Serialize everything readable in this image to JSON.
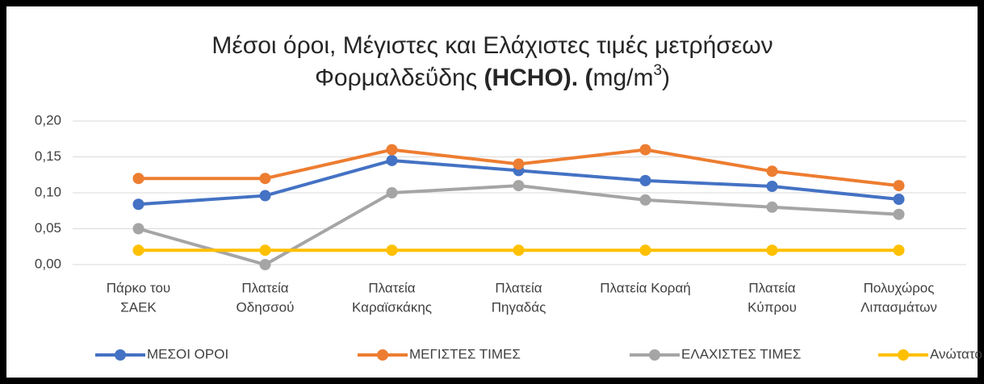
{
  "chart_data": {
    "type": "line",
    "title": [
      "Μέσοι όροι,  Μέγιστες και  Ελάχιστες τιμές μετρήσεων",
      "Φορμαλδεΰδης ",
      "(HCHO). (",
      "mg/m",
      "3",
      ")"
    ],
    "categories": [
      [
        "Πάρκο του",
        "ΣΑΕΚ"
      ],
      [
        "Πλατεία",
        "Οδησσού"
      ],
      [
        "Πλατεία",
        "Καραϊσκάκης"
      ],
      [
        "Πλατεία",
        "Πηγαδάς"
      ],
      [
        "Πλατεία Κοραή"
      ],
      [
        "Πλατεία",
        "Κύπρου"
      ],
      [
        "Πολυχώρος",
        "Λιπασμάτων"
      ]
    ],
    "series": [
      {
        "name": "ΜΕΣΟΙ ΟΡΟΙ",
        "color": "#4472c4",
        "values": [
          0.084,
          0.096,
          0.145,
          0.131,
          0.117,
          0.109,
          0.091
        ]
      },
      {
        "name": "ΜΕΓΙΣΤΕΣ ΤΙΜΕΣ",
        "color": "#ed7d31",
        "values": [
          0.12,
          0.12,
          0.16,
          0.14,
          0.16,
          0.13,
          0.11
        ]
      },
      {
        "name": "ΕΛΑΧΙΣΤΕΣ ΤΙΜΕΣ",
        "color": "#a5a5a5",
        "values": [
          0.05,
          0,
          0.1,
          0.11,
          0.09,
          0.08,
          0.07
        ]
      },
      {
        "name": "Ανώτατο επιτρ. όριο",
        "color": "#ffc000",
        "values": [
          0.02,
          0.02,
          0.02,
          0.02,
          0.02,
          0.02,
          0.02
        ]
      }
    ],
    "ylim": [
      0,
      0.2
    ],
    "yticks": [
      {
        "value": 0,
        "label": "0,00"
      },
      {
        "value": 0.05,
        "label": "0,05"
      },
      {
        "value": 0.1,
        "label": "0,10"
      },
      {
        "value": 0.15,
        "label": "0,15"
      },
      {
        "value": 0.2,
        "label": "0,20"
      }
    ],
    "grid": true,
    "legend": "bottom"
  }
}
